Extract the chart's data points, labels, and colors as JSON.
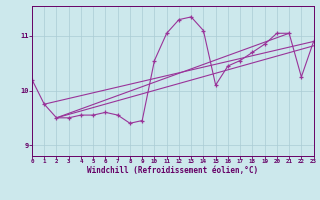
{
  "xlabel": "Windchill (Refroidissement éolien,°C)",
  "background_color": "#cce8ec",
  "line_color": "#993399",
  "grid_color": "#aaccd4",
  "axis_color": "#660066",
  "tick_color": "#660066",
  "xlim": [
    0,
    23
  ],
  "ylim": [
    8.8,
    11.55
  ],
  "yticks": [
    9,
    10,
    11
  ],
  "xticks": [
    0,
    1,
    2,
    3,
    4,
    5,
    6,
    7,
    8,
    9,
    10,
    11,
    12,
    13,
    14,
    15,
    16,
    17,
    18,
    19,
    20,
    21,
    22,
    23
  ],
  "curve1_x": [
    0,
    1,
    2,
    3,
    4,
    5,
    6,
    7,
    8,
    9,
    10,
    11,
    12,
    13,
    14,
    15,
    16,
    17,
    18,
    19,
    20,
    21,
    22,
    23
  ],
  "curve1_y": [
    10.2,
    9.75,
    9.5,
    9.5,
    9.55,
    9.55,
    9.6,
    9.55,
    9.4,
    9.45,
    10.55,
    11.05,
    11.3,
    11.35,
    11.1,
    10.1,
    10.45,
    10.55,
    10.7,
    10.85,
    11.05,
    11.05,
    10.25,
    10.9
  ],
  "line1_x": [
    1,
    23
  ],
  "line1_y": [
    9.75,
    10.9
  ],
  "line2_x": [
    2,
    23
  ],
  "line2_y": [
    9.5,
    10.82
  ],
  "line3_x": [
    2,
    21
  ],
  "line3_y": [
    9.5,
    11.05
  ],
  "tick_fontsize": 4.2,
  "label_fontsize": 5.5
}
